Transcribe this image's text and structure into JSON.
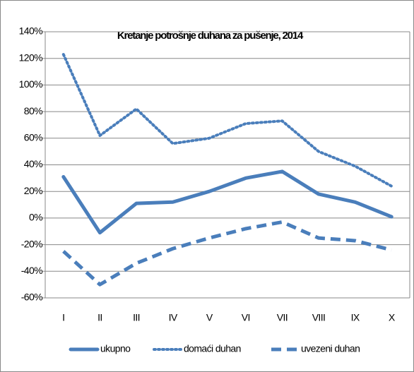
{
  "chart_data": {
    "type": "line",
    "title": "Kretanje potrošnje duhana za pušenje, 2014",
    "categories": [
      "I",
      "II",
      "III",
      "IV",
      "V",
      "VI",
      "VII",
      "VIII",
      "IX",
      "X"
    ],
    "series": [
      {
        "name": "ukupno",
        "color": "#4a7ebb",
        "dash": "solid",
        "values": [
          31,
          -11,
          11,
          12,
          20,
          30,
          35,
          18,
          12,
          1
        ]
      },
      {
        "name": "domaći duhan",
        "color": "#4a7ebb",
        "dash": "dotted",
        "values": [
          123,
          62,
          82,
          56,
          60,
          71,
          73,
          50,
          39,
          24
        ]
      },
      {
        "name": "uvezeni duhan",
        "color": "#4a7ebb",
        "dash": "dashed",
        "values": [
          -25,
          -50,
          -34,
          -23,
          -15,
          -8,
          -3,
          -15,
          -17,
          -24
        ]
      }
    ],
    "ylim": [
      -60,
      140
    ],
    "yticks": [
      {
        "value": -60,
        "label": "-60%"
      },
      {
        "value": -40,
        "label": "-40%"
      },
      {
        "value": -20,
        "label": "-20%"
      },
      {
        "value": 0,
        "label": "0%"
      },
      {
        "value": 20,
        "label": "20%"
      },
      {
        "value": 40,
        "label": "40%"
      },
      {
        "value": 60,
        "label": "60%"
      },
      {
        "value": 80,
        "label": "80%"
      },
      {
        "value": 100,
        "label": "100%"
      },
      {
        "value": 120,
        "label": "120%"
      },
      {
        "value": 140,
        "label": "140%"
      }
    ],
    "grid": true,
    "legend": "bottom"
  }
}
